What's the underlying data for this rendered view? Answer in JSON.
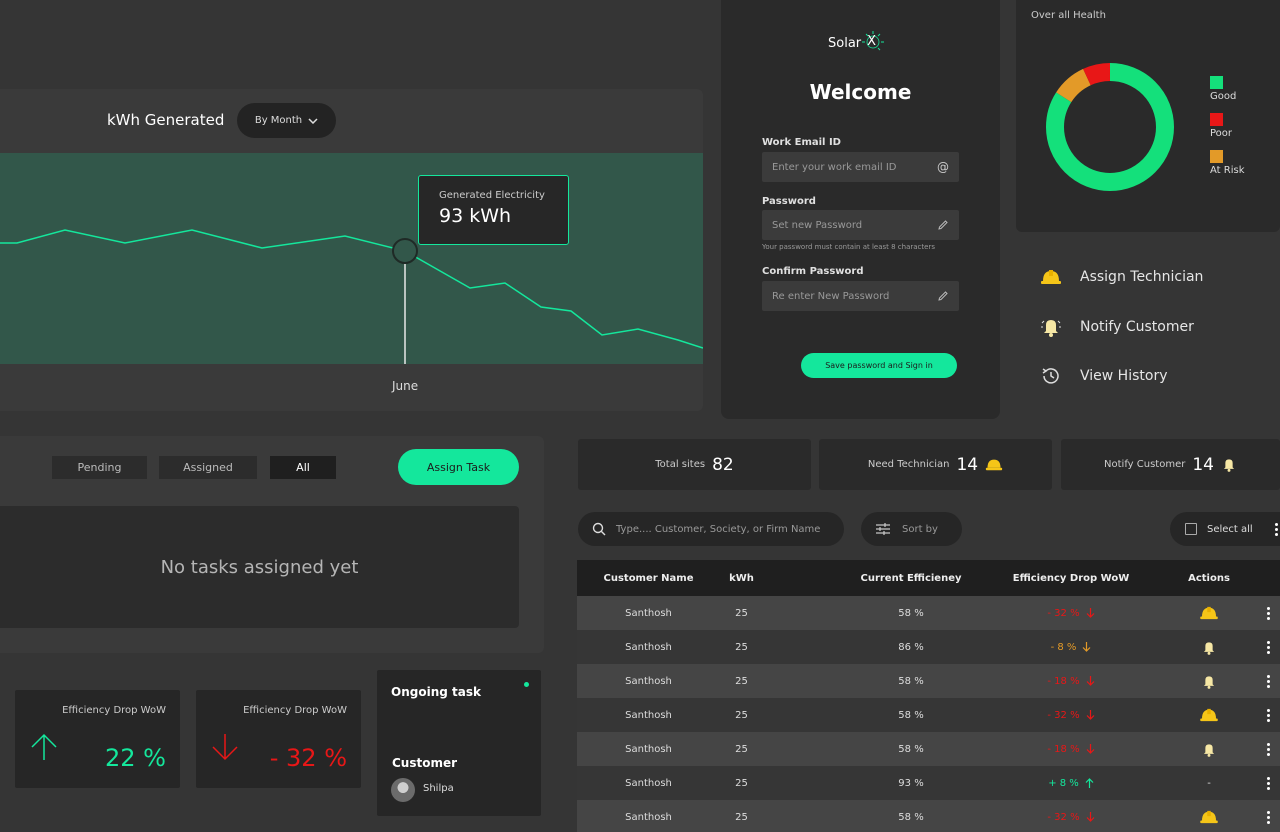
{
  "chart": {
    "title": "kWh Generated",
    "period_select": "By Month",
    "tooltip_label": "Generated Electricity",
    "tooltip_value": "93 kWh",
    "highlight_label": "June"
  },
  "login": {
    "brand": "Solar",
    "brand_mark": "X",
    "title": "Welcome",
    "email_label": "Work Email ID",
    "email_placeholder": "Enter your work email ID",
    "password_label": "Password",
    "password_placeholder": "Set new Password",
    "password_hint": "Your password must contain at least 8 characters",
    "confirm_label": "Confirm Password",
    "confirm_placeholder": "Re enter New Password",
    "submit": "Save password and Sign in"
  },
  "health": {
    "title": "Over all Health",
    "legend": [
      {
        "label": "Good",
        "color": "#14e07b",
        "share": 0.84
      },
      {
        "label": "Poor",
        "color": "#e81717",
        "share": 0.07
      },
      {
        "label": "At Risk",
        "color": "#e39a28",
        "share": 0.09
      }
    ]
  },
  "actions": {
    "assign": "Assign Technician",
    "notify": "Notify Customer",
    "history": "View History"
  },
  "tasks": {
    "tabs": [
      "Pending",
      "Assigned",
      "All"
    ],
    "active_tab": "All",
    "assign_button": "Assign Task",
    "empty_message": "No tasks assigned yet"
  },
  "efficiency_cards": [
    {
      "label": "Efficiency Drop WoW",
      "value": "22 %",
      "direction": "up",
      "color": "#14e79c"
    },
    {
      "label": "Efficiency Drop WoW",
      "value": "- 32 %",
      "direction": "down",
      "color": "#e81717"
    }
  ],
  "ongoing": {
    "title": "Ongoing task",
    "customer_label": "Customer",
    "customer_name": "Shilpa"
  },
  "stats": {
    "total_label": "Total sites",
    "total_value": "82",
    "tech_label": "Need Technician",
    "tech_value": "14",
    "notify_label": "Notify Customer",
    "notify_value": "14"
  },
  "toolbar": {
    "search_placeholder": "Type.... Customer, Society, or Firm Name",
    "sort_label": "Sort by",
    "select_all": "Select all"
  },
  "table": {
    "headers": [
      "Customer Name",
      "kWh",
      "Current Efficieney",
      "Efficiency Drop WoW",
      "Actions"
    ],
    "rows": [
      {
        "name": "Santhosh",
        "kwh": "25",
        "eff": "58 %",
        "drop": "- 32 %",
        "dir": "down",
        "color": "#e81717",
        "action": "helmet"
      },
      {
        "name": "Santhosh",
        "kwh": "25",
        "eff": "86 %",
        "drop": "- 8 %",
        "dir": "down",
        "color": "#e39a28",
        "action": "bell"
      },
      {
        "name": "Santhosh",
        "kwh": "25",
        "eff": "58 %",
        "drop": "- 18 %",
        "dir": "down",
        "color": "#e81717",
        "action": "bell"
      },
      {
        "name": "Santhosh",
        "kwh": "25",
        "eff": "58 %",
        "drop": "- 32 %",
        "dir": "down",
        "color": "#e81717",
        "action": "helmet"
      },
      {
        "name": "Santhosh",
        "kwh": "25",
        "eff": "58 %",
        "drop": "- 18 %",
        "dir": "down",
        "color": "#e81717",
        "action": "bell"
      },
      {
        "name": "Santhosh",
        "kwh": "25",
        "eff": "93 %",
        "drop": "+ 8 %",
        "dir": "up",
        "color": "#14e79c",
        "action": "none"
      },
      {
        "name": "Santhosh",
        "kwh": "25",
        "eff": "58 %",
        "drop": "- 32 %",
        "dir": "down",
        "color": "#e81717",
        "action": "helmet"
      }
    ]
  },
  "colors": {
    "accent": "#14e79c",
    "danger": "#e81717",
    "warning": "#e39a28"
  }
}
